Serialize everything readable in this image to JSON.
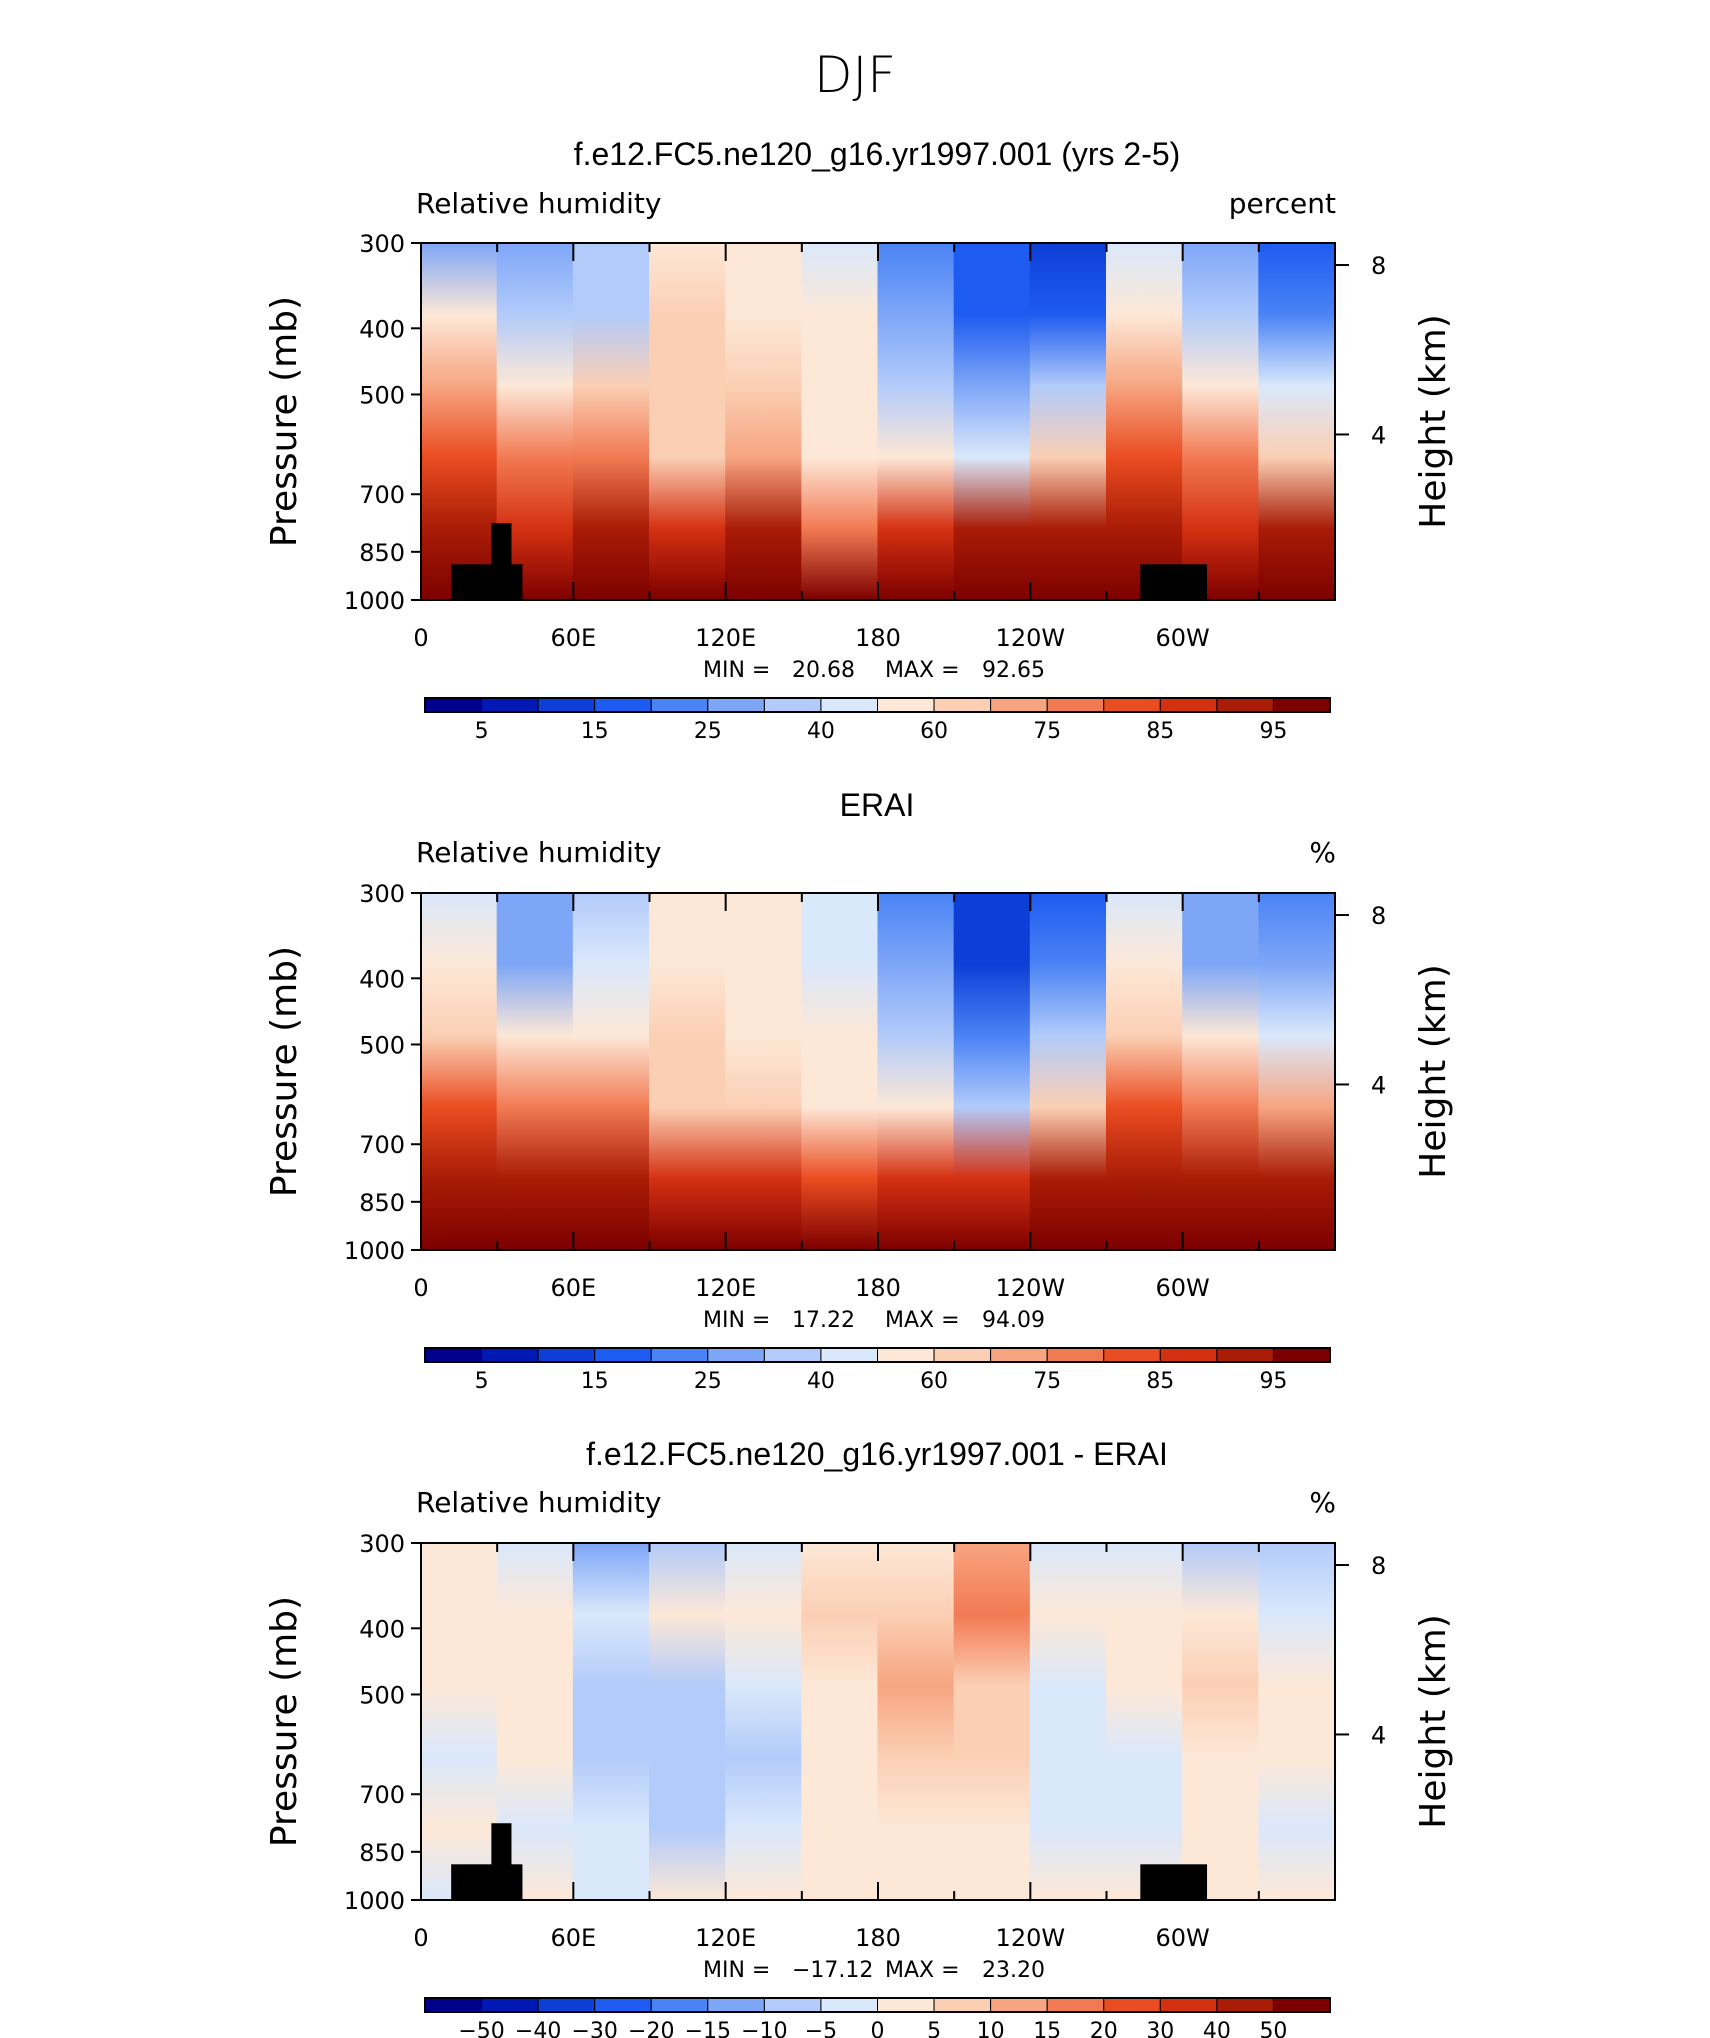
{
  "figure": {
    "title": "DJF"
  },
  "chart_data": [
    {
      "type": "heatmap",
      "title": "f.e12.FC5.ne120_g16.yr1997.001 (yrs 2-5)",
      "left_label": "Relative humidity",
      "right_label": "percent",
      "xlabel": "",
      "ylabel": "Pressure (mb)",
      "right_ylabel": "Height (km)",
      "x_ticks": [
        "0",
        "60E",
        "120E",
        "180",
        "120W",
        "60W"
      ],
      "y_ticks": [
        "300",
        "400",
        "500",
        "700",
        "850",
        "1000"
      ],
      "height_ticks": [
        "8",
        "4"
      ],
      "min_label": "MIN =",
      "min": "20.68",
      "max_label": "MAX =",
      "max": "92.65",
      "colorbar_labels": [
        "5",
        "15",
        "25",
        "40",
        "60",
        "75",
        "85",
        "95"
      ],
      "colorbar_colors": [
        "#00008c",
        "#0019b4",
        "#0d3fd6",
        "#1e5bf0",
        "#4a83f5",
        "#7ea6f7",
        "#b2cbfa",
        "#dae8fb",
        "#fde8d7",
        "#fbcfb4",
        "#f7a581",
        "#f27a53",
        "#ea4d21",
        "#d43111",
        "#a91c06",
        "#7d0000"
      ],
      "field_levels": [
        [
          0.3,
          0.5,
          0.64,
          0.78,
          0.92,
          1.0
        ],
        [
          0.32,
          0.4,
          0.55,
          0.7,
          0.88,
          1.0
        ],
        [
          0.38,
          0.42,
          0.6,
          0.72,
          0.9,
          1.0
        ],
        [
          0.55,
          0.6,
          0.6,
          0.62,
          0.85,
          1.0
        ],
        [
          0.5,
          0.55,
          0.6,
          0.65,
          0.9,
          1.0
        ],
        [
          0.45,
          0.5,
          0.5,
          0.55,
          0.75,
          1.0
        ],
        [
          0.28,
          0.32,
          0.4,
          0.55,
          0.88,
          1.0
        ],
        [
          0.18,
          0.22,
          0.32,
          0.45,
          0.9,
          1.0
        ],
        [
          0.15,
          0.2,
          0.38,
          0.6,
          0.92,
          1.0
        ],
        [
          0.45,
          0.55,
          0.65,
          0.8,
          0.94,
          1.0
        ],
        [
          0.32,
          0.4,
          0.55,
          0.72,
          0.88,
          1.0
        ],
        [
          0.2,
          0.28,
          0.45,
          0.62,
          0.9,
          1.0
        ]
      ]
    },
    {
      "type": "heatmap",
      "title": "ERAI",
      "left_label": "Relative humidity",
      "right_label": "%",
      "xlabel": "",
      "ylabel": "Pressure (mb)",
      "right_ylabel": "Height (km)",
      "x_ticks": [
        "0",
        "60E",
        "120E",
        "180",
        "120W",
        "60W"
      ],
      "y_ticks": [
        "300",
        "400",
        "500",
        "700",
        "850",
        "1000"
      ],
      "height_ticks": [
        "8",
        "4"
      ],
      "min_label": "MIN =",
      "min": "17.22",
      "max_label": "MAX =",
      "max": "94.09",
      "colorbar_labels": [
        "5",
        "15",
        "25",
        "40",
        "60",
        "75",
        "85",
        "95"
      ],
      "colorbar_colors": [
        "#00008c",
        "#0019b4",
        "#0d3fd6",
        "#1e5bf0",
        "#4a83f5",
        "#7ea6f7",
        "#b2cbfa",
        "#dae8fb",
        "#fde8d7",
        "#fbcfb4",
        "#f7a581",
        "#f27a53",
        "#ea4d21",
        "#d43111",
        "#a91c06",
        "#7d0000"
      ],
      "field_levels": [
        [
          0.45,
          0.5,
          0.62,
          0.78,
          0.92,
          1.0
        ],
        [
          0.3,
          0.36,
          0.5,
          0.7,
          0.9,
          1.0
        ],
        [
          0.42,
          0.45,
          0.55,
          0.72,
          0.9,
          1.0
        ],
        [
          0.52,
          0.55,
          0.58,
          0.62,
          0.85,
          1.0
        ],
        [
          0.5,
          0.52,
          0.55,
          0.62,
          0.88,
          1.0
        ],
        [
          0.45,
          0.48,
          0.52,
          0.55,
          0.8,
          1.0
        ],
        [
          0.25,
          0.3,
          0.38,
          0.5,
          0.85,
          1.0
        ],
        [
          0.12,
          0.15,
          0.28,
          0.42,
          0.88,
          1.0
        ],
        [
          0.2,
          0.25,
          0.4,
          0.62,
          0.94,
          1.0
        ],
        [
          0.45,
          0.5,
          0.62,
          0.78,
          0.94,
          1.0
        ],
        [
          0.3,
          0.36,
          0.52,
          0.7,
          0.9,
          1.0
        ],
        [
          0.28,
          0.34,
          0.48,
          0.66,
          0.9,
          1.0
        ]
      ]
    },
    {
      "type": "heatmap",
      "title": "f.e12.FC5.ne120_g16.yr1997.001 - ERAI",
      "left_label": "Relative humidity",
      "right_label": "%",
      "xlabel": "",
      "ylabel": "Pressure (mb)",
      "right_ylabel": "Height (km)",
      "x_ticks": [
        "0",
        "60E",
        "120E",
        "180",
        "120W",
        "60W"
      ],
      "y_ticks": [
        "300",
        "400",
        "500",
        "700",
        "850",
        "1000"
      ],
      "height_ticks": [
        "8",
        "4"
      ],
      "min_label": "MIN =",
      "min": "−17.12",
      "max_label": "MAX =",
      "max": "23.20",
      "colorbar_labels": [
        "−50",
        "−40",
        "−30",
        "−20",
        "−15",
        "−10",
        "−5",
        "0",
        "5",
        "10",
        "15",
        "20",
        "30",
        "40",
        "50"
      ],
      "colorbar_colors": [
        "#00008c",
        "#0019b4",
        "#0d3fd6",
        "#1e5bf0",
        "#4a83f5",
        "#7ea6f7",
        "#b2cbfa",
        "#dae8fb",
        "#fde8d7",
        "#fbcfb4",
        "#f7a581",
        "#f27a53",
        "#ea4d21",
        "#d43111",
        "#a91c06",
        "#7d0000"
      ],
      "field_levels": [
        [
          0.52,
          0.55,
          0.5,
          0.48,
          0.52,
          0.48
        ],
        [
          0.45,
          0.56,
          0.52,
          0.5,
          0.48,
          0.5
        ],
        [
          0.35,
          0.45,
          0.4,
          0.42,
          0.46,
          0.48
        ],
        [
          0.42,
          0.5,
          0.38,
          0.4,
          0.42,
          0.5
        ],
        [
          0.48,
          0.55,
          0.45,
          0.4,
          0.45,
          0.52
        ],
        [
          0.55,
          0.58,
          0.55,
          0.5,
          0.52,
          0.52
        ],
        [
          0.55,
          0.6,
          0.64,
          0.62,
          0.55,
          0.54
        ],
        [
          0.65,
          0.7,
          0.6,
          0.58,
          0.55,
          0.52
        ],
        [
          0.45,
          0.5,
          0.48,
          0.48,
          0.48,
          0.5
        ],
        [
          0.46,
          0.52,
          0.5,
          0.46,
          0.48,
          0.5
        ],
        [
          0.4,
          0.5,
          0.58,
          0.52,
          0.5,
          0.52
        ],
        [
          0.38,
          0.46,
          0.55,
          0.5,
          0.48,
          0.5
        ]
      ]
    }
  ]
}
